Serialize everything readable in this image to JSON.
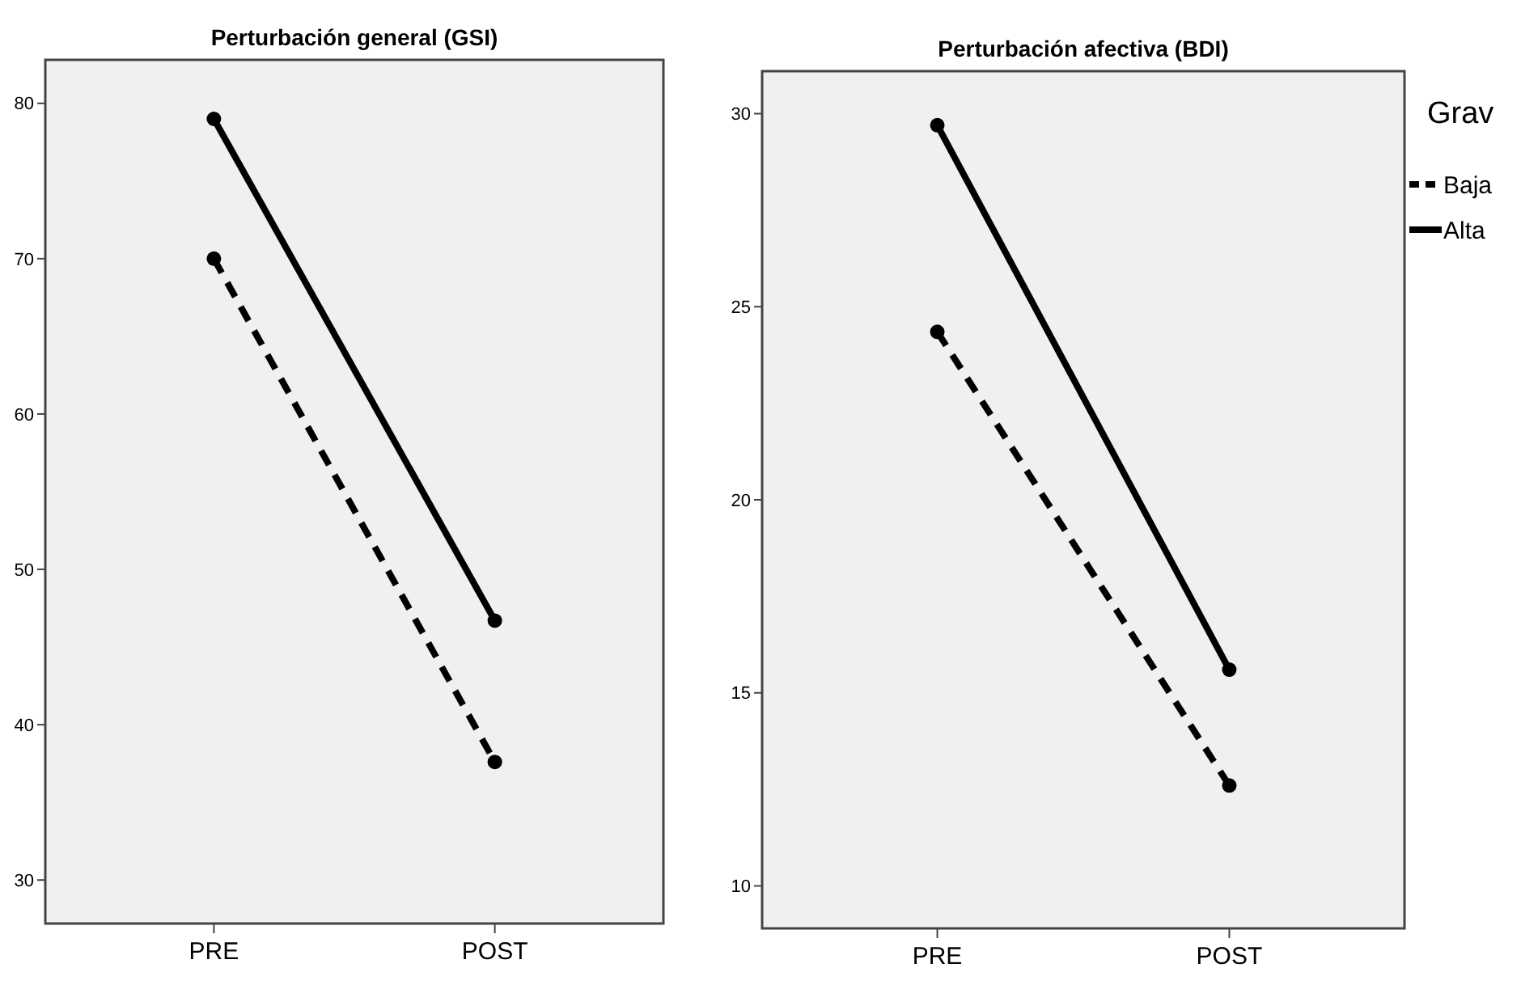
{
  "chart_data": [
    {
      "type": "line",
      "title": "Perturbación general (GSI)",
      "categories": [
        "PRE",
        "POST"
      ],
      "ylim": [
        27.2,
        82.8
      ],
      "yticks": [
        30,
        40,
        50,
        60,
        70,
        80
      ],
      "marker": "circle",
      "legend": false,
      "series": [
        {
          "color": "#000000",
          "line_style": "dashed",
          "values": [
            70.0,
            37.6
          ]
        },
        {
          "color": "#000000",
          "line_style": "solid",
          "values": [
            79.0,
            46.7
          ]
        }
      ]
    },
    {
      "type": "line",
      "title": "Perturbación afectiva (BDI)",
      "categories": [
        "PRE",
        "POST"
      ],
      "ylim": [
        8.9,
        31.1
      ],
      "yticks": [
        10,
        15,
        20,
        25,
        30
      ],
      "marker": "circle",
      "legend": "right",
      "legend_title": "Grav",
      "series": [
        {
          "name": "Baja",
          "color": "#000000",
          "line_style": "dashed",
          "values": [
            24.35,
            12.6
          ]
        },
        {
          "name": "Alta",
          "color": "#000000",
          "line_style": "solid",
          "values": [
            29.7,
            15.6
          ]
        }
      ]
    }
  ]
}
